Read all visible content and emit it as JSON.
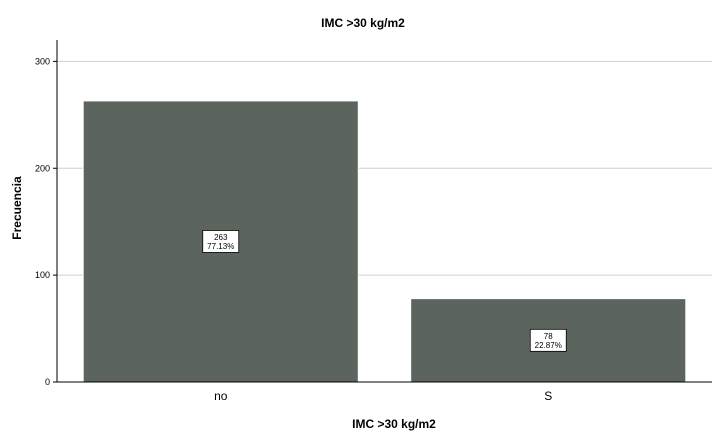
{
  "chart_data": {
    "type": "bar",
    "title": "IMC >30 kg/m2",
    "xlabel": "IMC >30 kg/m2",
    "ylabel": "Frecuencia",
    "categories": [
      "no",
      "S"
    ],
    "values": [
      263,
      78
    ],
    "data_labels": [
      {
        "count": "263",
        "percent": "77.13%"
      },
      {
        "count": "78",
        "percent": "22.87%"
      }
    ],
    "ylim": [
      0,
      320
    ],
    "yticks": [
      0,
      100,
      200,
      300
    ],
    "grid": true,
    "bar_color": "#5b655e",
    "bar_edge_color": "#ffffff",
    "gridline_color": "#cfcfcf",
    "axis_color": "#000000"
  }
}
